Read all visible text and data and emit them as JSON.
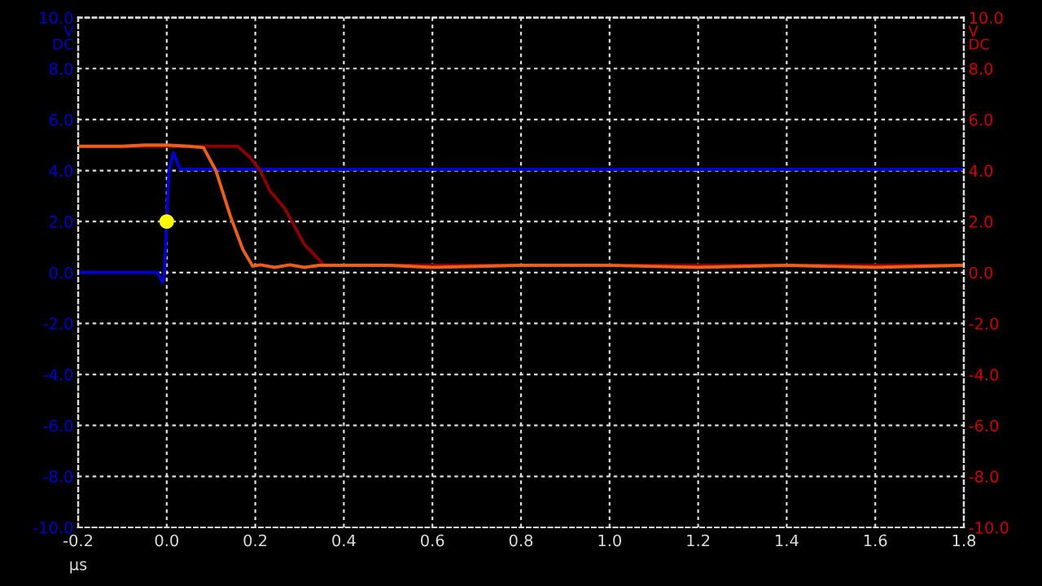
{
  "chart_data": {
    "type": "line",
    "xlabel": "µs",
    "ylabel": "V\nDC",
    "y2label": "V\nDC",
    "xlim": [
      -0.2,
      1.8
    ],
    "xticks": [
      {
        "value": -0.2,
        "label": "-0.2"
      },
      {
        "value": 0,
        "label": "0.0"
      },
      0.2,
      0.4,
      0.6,
      0.8,
      {
        "value": 1,
        "label": "1.0"
      },
      1.2,
      1.4,
      1.6,
      1.8
    ],
    "ylim": [
      -10,
      10
    ],
    "yticks": [
      {
        "value": -10,
        "label": "-10.0"
      },
      {
        "value": -8,
        "label": "-8.0"
      },
      {
        "value": -6,
        "label": "-6.0"
      },
      {
        "value": -4,
        "label": "-4.0"
      },
      {
        "value": -2,
        "label": "-2.0"
      },
      {
        "value": 0,
        "label": "0.0"
      },
      {
        "value": 2,
        "label": "2.0"
      },
      {
        "value": 4,
        "label": "4.0"
      },
      {
        "value": 6,
        "label": "6.0"
      },
      {
        "value": 8,
        "label": "8.0"
      },
      {
        "value": 10,
        "label": "10.0"
      }
    ],
    "y2lim": [
      -10,
      10
    ],
    "y2ticks": [
      {
        "value": -10,
        "label": "-10.0"
      },
      {
        "value": -8,
        "label": "-8.0"
      },
      {
        "value": -6,
        "label": "-6.0"
      },
      {
        "value": -4,
        "label": "-4.0"
      },
      {
        "value": -2,
        "label": "-2.0"
      },
      {
        "value": 0,
        "label": "0.0"
      },
      {
        "value": 2,
        "label": "2.0"
      },
      {
        "value": 4,
        "label": "4.0"
      },
      {
        "value": 6,
        "label": "6.0"
      },
      {
        "value": 8,
        "label": "8.0"
      },
      {
        "value": 10,
        "label": "10.0"
      }
    ],
    "grid": true,
    "legend": false,
    "line_style": "solid",
    "series": [
      {
        "color": "#0000cc",
        "x": [
          -0.2,
          -0.1,
          -0.02,
          -0.01,
          -0.005,
          0.0,
          0.005,
          0.015,
          0.022,
          0.03,
          0.2,
          0.6,
          1.0,
          1.4,
          1.8
        ],
        "values": [
          0,
          0,
          0,
          -0.4,
          0.0,
          2.0,
          4.0,
          4.7,
          4.4,
          4.05,
          4.05,
          4.05,
          4.05,
          4.05,
          4.05
        ]
      },
      {
        "color": "#8b0000",
        "axis": "y2",
        "x": [
          -0.2,
          -0.1,
          0.0,
          0.1,
          0.161,
          0.189,
          0.211,
          0.233,
          0.267,
          0.311,
          0.344,
          0.356,
          0.5,
          0.8,
          1.1,
          1.4,
          1.8
        ],
        "values": [
          4.95,
          4.95,
          4.95,
          4.95,
          4.95,
          4.5,
          4.0,
          3.2,
          2.5,
          1.1,
          0.5,
          0.28,
          0.28,
          0.28,
          0.28,
          0.28,
          0.28
        ]
      },
      {
        "color": "#e8601c",
        "axis": "y2",
        "x": [
          -0.2,
          -0.1,
          -0.05,
          0.0,
          0.05,
          0.083,
          0.111,
          0.144,
          0.172,
          0.194,
          0.211,
          0.244,
          0.278,
          0.311,
          0.344,
          0.5,
          0.6,
          0.8,
          1.0,
          1.2,
          1.4,
          1.6,
          1.8
        ],
        "values": [
          4.95,
          4.95,
          5.0,
          5.0,
          4.95,
          4.9,
          4.0,
          2.2,
          0.9,
          0.25,
          0.3,
          0.2,
          0.3,
          0.2,
          0.28,
          0.28,
          0.2,
          0.28,
          0.28,
          0.2,
          0.28,
          0.2,
          0.28
        ]
      },
      {
        "type": "scatter",
        "color": "#ffff00",
        "marker": "circle",
        "x": [
          0.0
        ],
        "values": [
          2.0
        ]
      }
    ]
  }
}
